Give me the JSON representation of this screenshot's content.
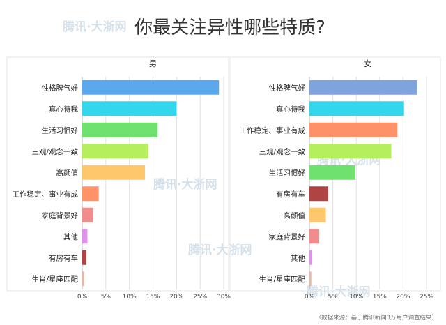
{
  "page": {
    "title": "你最关注异性哪些特质?",
    "source": "（数据来源：基于腾讯新闻3万用户调查结果）",
    "watermark": "腾讯·大浙网"
  },
  "chart_data": [
    {
      "type": "bar",
      "orientation": "horizontal",
      "title": "男",
      "xlim": [
        0,
        30
      ],
      "xticks": [
        "0%",
        "5%",
        "10%",
        "15%",
        "20%",
        "25%",
        "30%"
      ],
      "grid": true,
      "categories": [
        "性格脾气好",
        "真心待我",
        "生活习惯好",
        "三观/观念一致",
        "高颜值",
        "工作稳定、事业有成",
        "家庭背景好",
        "其他",
        "有房有车",
        "生肖/星座匹配"
      ],
      "values": [
        29,
        20,
        16,
        14,
        13.3,
        3.5,
        2.3,
        1.1,
        0.9,
        0.4
      ],
      "colors": [
        "#5aa9ee",
        "#33d7ec",
        "#6ee16e",
        "#b6ef5e",
        "#ffc76b",
        "#ff9268",
        "#f08c8c",
        "#e092ea",
        "#b04444",
        "#e6b8a8"
      ]
    },
    {
      "type": "bar",
      "orientation": "horizontal",
      "title": "女",
      "xlim": [
        0,
        25
      ],
      "xticks": [
        "0%",
        "5%",
        "10%",
        "15%",
        "20%",
        "25%"
      ],
      "grid": true,
      "categories": [
        "性格脾气好",
        "真心待我",
        "工作稳定、事业有成",
        "三观/观念一致",
        "生活习惯好",
        "有房有车",
        "高颜值",
        "家庭背景好",
        "其他",
        "生肖/星座匹配"
      ],
      "values": [
        23,
        20.2,
        18.8,
        17.5,
        9.8,
        4,
        3.5,
        2.1,
        0.6,
        0.4
      ],
      "colors": [
        "#7fa3dc",
        "#33d7ec",
        "#ff9268",
        "#b6ef5e",
        "#6ee16e",
        "#b04444",
        "#ffc76b",
        "#f08c8c",
        "#e092ea",
        "#e6b8a8"
      ]
    }
  ]
}
